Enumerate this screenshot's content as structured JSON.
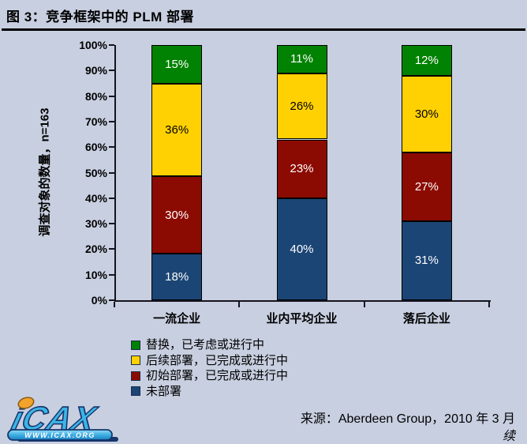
{
  "header": {
    "title": "图 3：竞争框架中的 PLM 部署"
  },
  "chart_data": {
    "type": "bar",
    "stacked": true,
    "title": "图 3：竞争框架中的 PLM 部署",
    "categories": [
      "一流企业",
      "业内平均企业",
      "落后企业"
    ],
    "series": [
      {
        "name": "未部署",
        "color": "#1B4575",
        "text_color": "#FFFFFF",
        "values": [
          18,
          40,
          31
        ]
      },
      {
        "name": "初始部署，已完成或进行中",
        "color": "#8B0B02",
        "text_color": "#FFFFFF",
        "values": [
          30,
          23,
          27
        ]
      },
      {
        "name": "后续部署，已完成或进行中",
        "color": "#FFD102",
        "text_color": "#000000",
        "values": [
          36,
          26,
          30
        ]
      },
      {
        "name": "替换，已考虑或进行中",
        "color": "#028202",
        "text_color": "#FFFFFF",
        "values": [
          15,
          11,
          12
        ]
      }
    ],
    "ylabel": "调查对象的数量，n=163",
    "ylim": [
      0,
      100
    ],
    "ytick_labels": [
      "0%",
      "10%",
      "20%",
      "30%",
      "40%",
      "50%",
      "60%",
      "70%",
      "80%",
      "90%",
      "100%"
    ],
    "value_suffix": "%",
    "grid": false,
    "legend_position": "bottom-left",
    "legend_order": "top-segment-first"
  },
  "footer": {
    "source": "来源：Aberdeen Group，2010 年 3 月",
    "continued": "续"
  },
  "logo": {
    "name": "iCAX",
    "url_text": "WWW.ICAX.ORG"
  }
}
